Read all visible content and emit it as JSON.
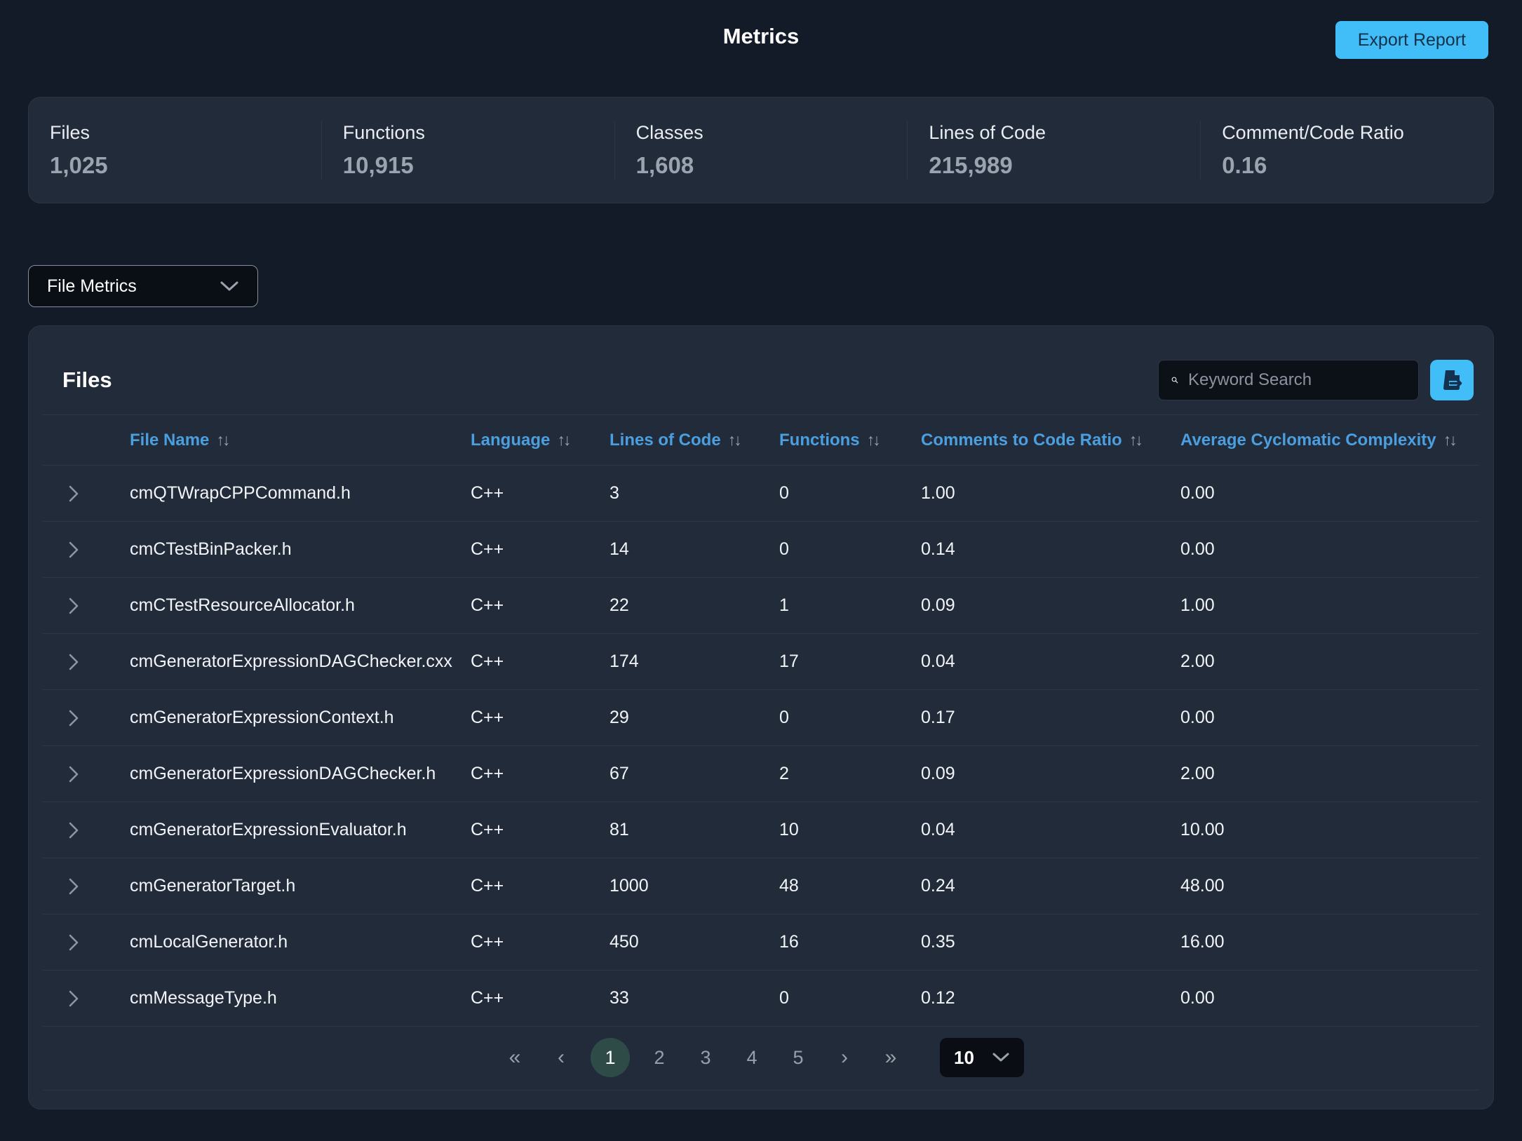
{
  "header": {
    "title": "Metrics",
    "export_button_label": "Export Report"
  },
  "stats": [
    {
      "label": "Files",
      "value": "1,025"
    },
    {
      "label": "Functions",
      "value": "10,915"
    },
    {
      "label": "Classes",
      "value": "1,608"
    },
    {
      "label": "Lines of Code",
      "value": "215,989"
    },
    {
      "label": "Comment/Code Ratio",
      "value": "0.16"
    }
  ],
  "metric_selector": {
    "value": "File Metrics"
  },
  "icons": {
    "sort": "↑↓"
  },
  "files_panel": {
    "title": "Files",
    "search_placeholder": "Keyword Search",
    "columns": [
      {
        "label": "File Name",
        "key": "file_name"
      },
      {
        "label": "Language",
        "key": "language"
      },
      {
        "label": "Lines of Code",
        "key": "lines_of_code"
      },
      {
        "label": "Functions",
        "key": "functions"
      },
      {
        "label": "Comments to Code Ratio",
        "key": "comments_to_code_ratio"
      },
      {
        "label": "Average Cyclomatic Complexity",
        "key": "avg_cyclomatic_complexity"
      }
    ],
    "rows": [
      {
        "file_name": "cmQTWrapCPPCommand.h",
        "language": "C++",
        "lines_of_code": "3",
        "functions": "0",
        "comments_to_code_ratio": "1.00",
        "avg_cyclomatic_complexity": "0.00"
      },
      {
        "file_name": "cmCTestBinPacker.h",
        "language": "C++",
        "lines_of_code": "14",
        "functions": "0",
        "comments_to_code_ratio": "0.14",
        "avg_cyclomatic_complexity": "0.00"
      },
      {
        "file_name": "cmCTestResourceAllocator.h",
        "language": "C++",
        "lines_of_code": "22",
        "functions": "1",
        "comments_to_code_ratio": "0.09",
        "avg_cyclomatic_complexity": "1.00"
      },
      {
        "file_name": "cmGeneratorExpressionDAGChecker.cxx",
        "language": "C++",
        "lines_of_code": "174",
        "functions": "17",
        "comments_to_code_ratio": "0.04",
        "avg_cyclomatic_complexity": "2.00"
      },
      {
        "file_name": "cmGeneratorExpressionContext.h",
        "language": "C++",
        "lines_of_code": "29",
        "functions": "0",
        "comments_to_code_ratio": "0.17",
        "avg_cyclomatic_complexity": "0.00"
      },
      {
        "file_name": "cmGeneratorExpressionDAGChecker.h",
        "language": "C++",
        "lines_of_code": "67",
        "functions": "2",
        "comments_to_code_ratio": "0.09",
        "avg_cyclomatic_complexity": "2.00"
      },
      {
        "file_name": "cmGeneratorExpressionEvaluator.h",
        "language": "C++",
        "lines_of_code": "81",
        "functions": "10",
        "comments_to_code_ratio": "0.04",
        "avg_cyclomatic_complexity": "10.00"
      },
      {
        "file_name": "cmGeneratorTarget.h",
        "language": "C++",
        "lines_of_code": "1000",
        "functions": "48",
        "comments_to_code_ratio": "0.24",
        "avg_cyclomatic_complexity": "48.00"
      },
      {
        "file_name": "cmLocalGenerator.h",
        "language": "C++",
        "lines_of_code": "450",
        "functions": "16",
        "comments_to_code_ratio": "0.35",
        "avg_cyclomatic_complexity": "16.00"
      },
      {
        "file_name": "cmMessageType.h",
        "language": "C++",
        "lines_of_code": "33",
        "functions": "0",
        "comments_to_code_ratio": "0.12",
        "avg_cyclomatic_complexity": "0.00"
      }
    ],
    "pagination": {
      "first": "«",
      "prev": "‹",
      "pages": [
        "1",
        "2",
        "3",
        "4",
        "5"
      ],
      "current": "1",
      "next": "›",
      "last": "»",
      "page_size": "10"
    }
  },
  "colors": {
    "accent_blue": "#41bdf7",
    "column_header_blue": "#4b9fdf",
    "active_page_teal": "#2e4b47",
    "page_background": "#131a28",
    "card_background": "#212b3a"
  }
}
